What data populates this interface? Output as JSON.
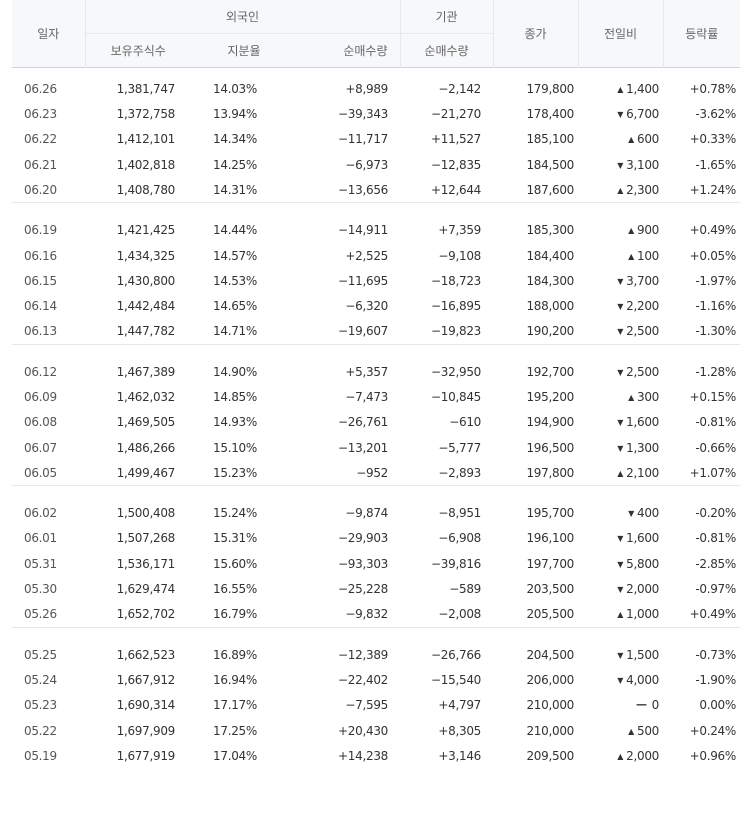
{
  "header": {
    "date": "일자",
    "foreign": "외국인",
    "institution": "기관",
    "close": "종가",
    "diff": "전일비",
    "rate": "등락률",
    "held": "보유주식수",
    "ratio": "지분율",
    "foreign_net": "순매수량",
    "inst_net": "순매수량"
  },
  "colors": {
    "up": "#e22222",
    "down": "#1b56c8",
    "header_bg": "#f7f8fa"
  },
  "groups": [
    {
      "rows": [
        {
          "date": "06.26",
          "held": "1,381,747",
          "ratio": "14.03%",
          "fnet": "+8,989",
          "fdir": "up",
          "inet": "−2,142",
          "idir": "down",
          "close": "179,800",
          "cdir": "up",
          "diff": "1,400",
          "ddir": "up",
          "rate": "+0.78%",
          "rdir": "up"
        },
        {
          "date": "06.23",
          "held": "1,372,758",
          "ratio": "13.94%",
          "fnet": "−39,343",
          "fdir": "down",
          "inet": "−21,270",
          "idir": "down",
          "close": "178,400",
          "cdir": "down",
          "diff": "6,700",
          "ddir": "down",
          "rate": "-3.62%",
          "rdir": "down"
        },
        {
          "date": "06.22",
          "held": "1,412,101",
          "ratio": "14.34%",
          "fnet": "−11,717",
          "fdir": "down",
          "inet": "+11,527",
          "idir": "up",
          "close": "185,100",
          "cdir": "up",
          "diff": "600",
          "ddir": "up",
          "rate": "+0.33%",
          "rdir": "up"
        },
        {
          "date": "06.21",
          "held": "1,402,818",
          "ratio": "14.25%",
          "fnet": "−6,973",
          "fdir": "down",
          "inet": "−12,835",
          "idir": "down",
          "close": "184,500",
          "cdir": "down",
          "diff": "3,100",
          "ddir": "down",
          "rate": "-1.65%",
          "rdir": "down"
        },
        {
          "date": "06.20",
          "held": "1,408,780",
          "ratio": "14.31%",
          "fnet": "−13,656",
          "fdir": "down",
          "inet": "+12,644",
          "idir": "up",
          "close": "187,600",
          "cdir": "up",
          "diff": "2,300",
          "ddir": "up",
          "rate": "+1.24%",
          "rdir": "up"
        }
      ]
    },
    {
      "rows": [
        {
          "date": "06.19",
          "held": "1,421,425",
          "ratio": "14.44%",
          "fnet": "−14,911",
          "fdir": "down",
          "inet": "+7,359",
          "idir": "up",
          "close": "185,300",
          "cdir": "up",
          "diff": "900",
          "ddir": "up",
          "rate": "+0.49%",
          "rdir": "up"
        },
        {
          "date": "06.16",
          "held": "1,434,325",
          "ratio": "14.57%",
          "fnet": "+2,525",
          "fdir": "up",
          "inet": "−9,108",
          "idir": "down",
          "close": "184,400",
          "cdir": "up",
          "diff": "100",
          "ddir": "up",
          "rate": "+0.05%",
          "rdir": "up"
        },
        {
          "date": "06.15",
          "held": "1,430,800",
          "ratio": "14.53%",
          "fnet": "−11,695",
          "fdir": "down",
          "inet": "−18,723",
          "idir": "down",
          "close": "184,300",
          "cdir": "down",
          "diff": "3,700",
          "ddir": "down",
          "rate": "-1.97%",
          "rdir": "down"
        },
        {
          "date": "06.14",
          "held": "1,442,484",
          "ratio": "14.65%",
          "fnet": "−6,320",
          "fdir": "down",
          "inet": "−16,895",
          "idir": "down",
          "close": "188,000",
          "cdir": "down",
          "diff": "2,200",
          "ddir": "down",
          "rate": "-1.16%",
          "rdir": "down"
        },
        {
          "date": "06.13",
          "held": "1,447,782",
          "ratio": "14.71%",
          "fnet": "−19,607",
          "fdir": "down",
          "inet": "−19,823",
          "idir": "down",
          "close": "190,200",
          "cdir": "down",
          "diff": "2,500",
          "ddir": "down",
          "rate": "-1.30%",
          "rdir": "down"
        }
      ]
    },
    {
      "rows": [
        {
          "date": "06.12",
          "held": "1,467,389",
          "ratio": "14.90%",
          "fnet": "+5,357",
          "fdir": "up",
          "inet": "−32,950",
          "idir": "down",
          "close": "192,700",
          "cdir": "down",
          "diff": "2,500",
          "ddir": "down",
          "rate": "-1.28%",
          "rdir": "down"
        },
        {
          "date": "06.09",
          "held": "1,462,032",
          "ratio": "14.85%",
          "fnet": "−7,473",
          "fdir": "down",
          "inet": "−10,845",
          "idir": "down",
          "close": "195,200",
          "cdir": "up",
          "diff": "300",
          "ddir": "up",
          "rate": "+0.15%",
          "rdir": "up"
        },
        {
          "date": "06.08",
          "held": "1,469,505",
          "ratio": "14.93%",
          "fnet": "−26,761",
          "fdir": "down",
          "inet": "−610",
          "idir": "down",
          "close": "194,900",
          "cdir": "down",
          "diff": "1,600",
          "ddir": "down",
          "rate": "-0.81%",
          "rdir": "down"
        },
        {
          "date": "06.07",
          "held": "1,486,266",
          "ratio": "15.10%",
          "fnet": "−13,201",
          "fdir": "down",
          "inet": "−5,777",
          "idir": "down",
          "close": "196,500",
          "cdir": "down",
          "diff": "1,300",
          "ddir": "down",
          "rate": "-0.66%",
          "rdir": "down"
        },
        {
          "date": "06.05",
          "held": "1,499,467",
          "ratio": "15.23%",
          "fnet": "−952",
          "fdir": "down",
          "inet": "−2,893",
          "idir": "down",
          "close": "197,800",
          "cdir": "up",
          "diff": "2,100",
          "ddir": "up",
          "rate": "+1.07%",
          "rdir": "up"
        }
      ]
    },
    {
      "rows": [
        {
          "date": "06.02",
          "held": "1,500,408",
          "ratio": "15.24%",
          "fnet": "−9,874",
          "fdir": "down",
          "inet": "−8,951",
          "idir": "down",
          "close": "195,700",
          "cdir": "down",
          "diff": "400",
          "ddir": "down",
          "rate": "-0.20%",
          "rdir": "down"
        },
        {
          "date": "06.01",
          "held": "1,507,268",
          "ratio": "15.31%",
          "fnet": "−29,903",
          "fdir": "down",
          "inet": "−6,908",
          "idir": "down",
          "close": "196,100",
          "cdir": "down",
          "diff": "1,600",
          "ddir": "down",
          "rate": "-0.81%",
          "rdir": "down"
        },
        {
          "date": "05.31",
          "held": "1,536,171",
          "ratio": "15.60%",
          "fnet": "−93,303",
          "fdir": "down",
          "inet": "−39,816",
          "idir": "down",
          "close": "197,700",
          "cdir": "down",
          "diff": "5,800",
          "ddir": "down",
          "rate": "-2.85%",
          "rdir": "down"
        },
        {
          "date": "05.30",
          "held": "1,629,474",
          "ratio": "16.55%",
          "fnet": "−25,228",
          "fdir": "down",
          "inet": "−589",
          "idir": "down",
          "close": "203,500",
          "cdir": "down",
          "diff": "2,000",
          "ddir": "down",
          "rate": "-0.97%",
          "rdir": "down"
        },
        {
          "date": "05.26",
          "held": "1,652,702",
          "ratio": "16.79%",
          "fnet": "−9,832",
          "fdir": "down",
          "inet": "−2,008",
          "idir": "down",
          "close": "205,500",
          "cdir": "up",
          "diff": "1,000",
          "ddir": "up",
          "rate": "+0.49%",
          "rdir": "up"
        }
      ]
    },
    {
      "rows": [
        {
          "date": "05.25",
          "held": "1,662,523",
          "ratio": "16.89%",
          "fnet": "−12,389",
          "fdir": "down",
          "inet": "−26,766",
          "idir": "down",
          "close": "204,500",
          "cdir": "down",
          "diff": "1,500",
          "ddir": "down",
          "rate": "-0.73%",
          "rdir": "down"
        },
        {
          "date": "05.24",
          "held": "1,667,912",
          "ratio": "16.94%",
          "fnet": "−22,402",
          "fdir": "down",
          "inet": "−15,540",
          "idir": "down",
          "close": "206,000",
          "cdir": "down",
          "diff": "4,000",
          "ddir": "down",
          "rate": "-1.90%",
          "rdir": "down"
        },
        {
          "date": "05.23",
          "held": "1,690,314",
          "ratio": "17.17%",
          "fnet": "−7,595",
          "fdir": "down",
          "inet": "+4,797",
          "idir": "up",
          "close": "210,000",
          "cdir": "flat",
          "diff": "0",
          "ddir": "flat",
          "rate": "0.00%",
          "rdir": "flat"
        },
        {
          "date": "05.22",
          "held": "1,697,909",
          "ratio": "17.25%",
          "fnet": "+20,430",
          "fdir": "up",
          "inet": "+8,305",
          "idir": "up",
          "close": "210,000",
          "cdir": "up",
          "diff": "500",
          "ddir": "up",
          "rate": "+0.24%",
          "rdir": "up"
        },
        {
          "date": "05.19",
          "held": "1,677,919",
          "ratio": "17.04%",
          "fnet": "+14,238",
          "fdir": "up",
          "inet": "+3,146",
          "idir": "up",
          "close": "209,500",
          "cdir": "up",
          "diff": "2,000",
          "ddir": "up",
          "rate": "+0.96%",
          "rdir": "up"
        }
      ]
    }
  ]
}
